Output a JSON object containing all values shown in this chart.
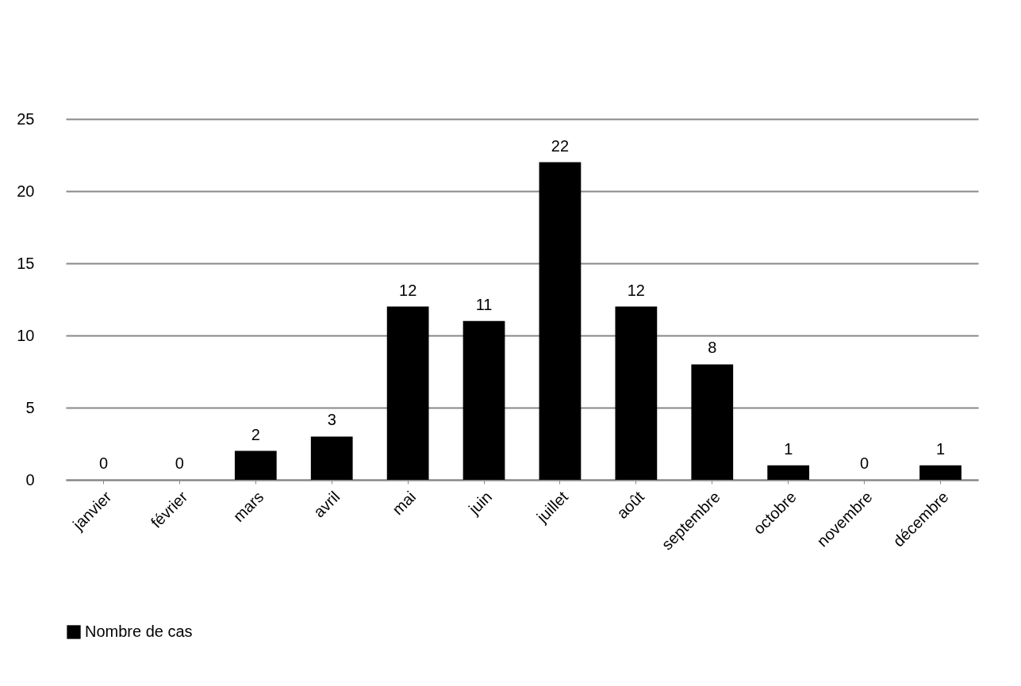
{
  "chart_data": {
    "type": "bar",
    "categories": [
      "janvier",
      "février",
      "mars",
      "avril",
      "mai",
      "juin",
      "juillet",
      "août",
      "septembre",
      "octobre",
      "novembre",
      "décembre"
    ],
    "series": [
      {
        "name": "Nombre de cas",
        "color": "#000000",
        "values": [
          0,
          0,
          2,
          3,
          12,
          11,
          22,
          12,
          8,
          1,
          0,
          1
        ]
      }
    ],
    "ylim": [
      0,
      25
    ],
    "yticks": [
      0,
      5,
      10,
      15,
      20,
      25
    ],
    "grid": "y",
    "legend": "bottom",
    "data_labels": true
  }
}
